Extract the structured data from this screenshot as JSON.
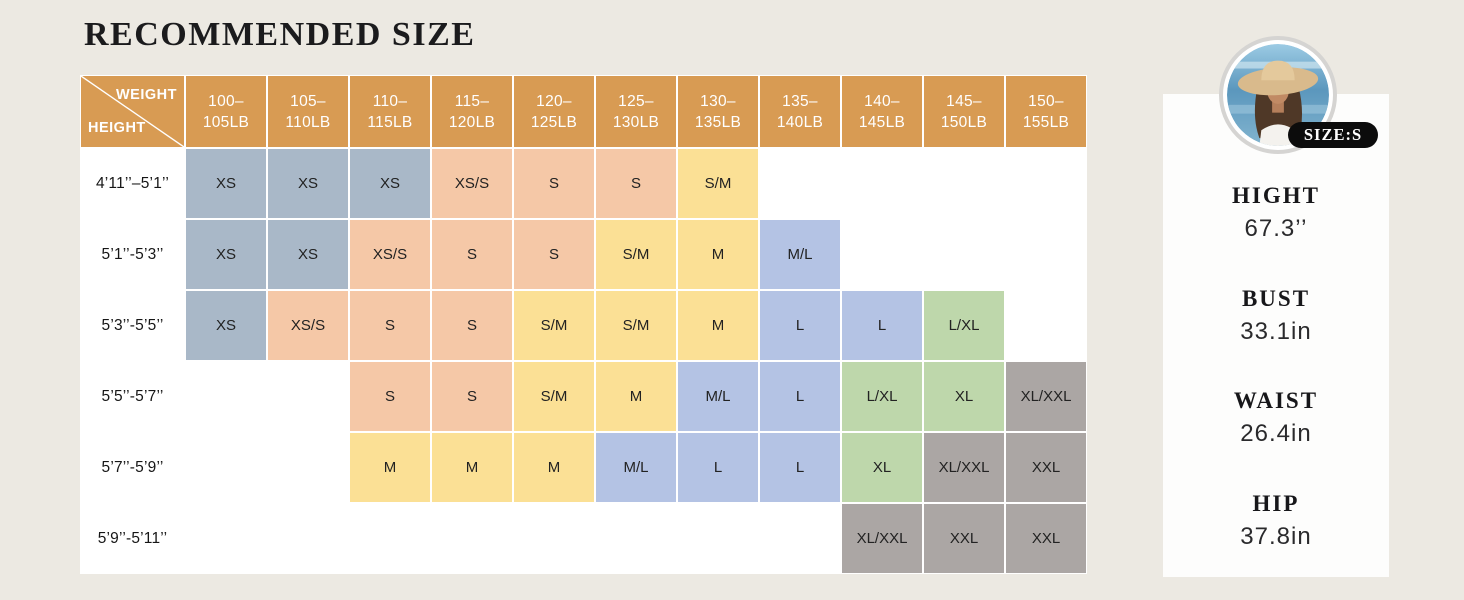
{
  "page": {
    "title": "RECOMMENDED SIZE",
    "background": "#ECE9E2"
  },
  "chart_data": {
    "type": "table",
    "title": "RECOMMENDED SIZE",
    "corner": {
      "weight_label": "WEIGHT",
      "height_label": "HEIGHT"
    },
    "columns": [
      "100–105LB",
      "105–110LB",
      "110–115LB",
      "115–120LB",
      "120–125LB",
      "125–130LB",
      "130–135LB",
      "135–140LB",
      "140–145LB",
      "145–150LB",
      "150–155LB"
    ],
    "palette": {
      "header": "#D89B53",
      "xs": "#A9B8C8",
      "s": "#F5C8A7",
      "m": "#FBE095",
      "l": "#B4C3E4",
      "xl": "#BED7AB",
      "xxl": "#ABA6A4"
    },
    "rows": [
      {
        "height": "4’11’’–5’1’’",
        "cells": [
          {
            "t": "XS",
            "c": "xs"
          },
          {
            "t": "XS",
            "c": "xs"
          },
          {
            "t": "XS",
            "c": "xs"
          },
          {
            "t": "XS/S",
            "c": "s"
          },
          {
            "t": "S",
            "c": "s"
          },
          {
            "t": "S",
            "c": "s"
          },
          {
            "t": "S/M",
            "c": "m"
          },
          null,
          null,
          null,
          null
        ]
      },
      {
        "height": "5’1’’-5’3’’",
        "cells": [
          {
            "t": "XS",
            "c": "xs"
          },
          {
            "t": "XS",
            "c": "xs"
          },
          {
            "t": "XS/S",
            "c": "s"
          },
          {
            "t": "S",
            "c": "s"
          },
          {
            "t": "S",
            "c": "s"
          },
          {
            "t": "S/M",
            "c": "m"
          },
          {
            "t": "M",
            "c": "m"
          },
          {
            "t": "M/L",
            "c": "l"
          },
          null,
          null,
          null
        ]
      },
      {
        "height": "5’3’’-5’5’’",
        "cells": [
          {
            "t": "XS",
            "c": "xs"
          },
          {
            "t": "XS/S",
            "c": "s"
          },
          {
            "t": "S",
            "c": "s"
          },
          {
            "t": "S",
            "c": "s"
          },
          {
            "t": "S/M",
            "c": "m"
          },
          {
            "t": "S/M",
            "c": "m"
          },
          {
            "t": "M",
            "c": "m"
          },
          {
            "t": "L",
            "c": "l"
          },
          {
            "t": "L",
            "c": "l"
          },
          {
            "t": "L/XL",
            "c": "xl"
          },
          null
        ]
      },
      {
        "height": "5’5’’-5’7’’",
        "cells": [
          null,
          null,
          {
            "t": "S",
            "c": "s"
          },
          {
            "t": "S",
            "c": "s"
          },
          {
            "t": "S/M",
            "c": "m"
          },
          {
            "t": "M",
            "c": "m"
          },
          {
            "t": "M/L",
            "c": "l"
          },
          {
            "t": "L",
            "c": "l"
          },
          {
            "t": "L/XL",
            "c": "xl"
          },
          {
            "t": "XL",
            "c": "xl"
          },
          {
            "t": "XL/XXL",
            "c": "xxl"
          }
        ]
      },
      {
        "height": "5’7’’-5’9’’",
        "cells": [
          null,
          null,
          {
            "t": "M",
            "c": "m"
          },
          {
            "t": "M",
            "c": "m"
          },
          {
            "t": "M",
            "c": "m"
          },
          {
            "t": "M/L",
            "c": "l"
          },
          {
            "t": "L",
            "c": "l"
          },
          {
            "t": "L",
            "c": "l"
          },
          {
            "t": "XL",
            "c": "xl"
          },
          {
            "t": "XL/XXL",
            "c": "xxl"
          },
          {
            "t": "XXL",
            "c": "xxl"
          }
        ]
      },
      {
        "height": "5’9’’-5’11’’",
        "cells": [
          null,
          null,
          null,
          null,
          null,
          null,
          null,
          null,
          {
            "t": "XL/XXL",
            "c": "xxl"
          },
          {
            "t": "XXL",
            "c": "xxl"
          },
          {
            "t": "XXL",
            "c": "xxl"
          }
        ]
      }
    ]
  },
  "panel": {
    "badge": "SIZE:S",
    "photo": "model-in-straw-hat-by-ocean",
    "stats": [
      {
        "label": "HIGHT",
        "value": "67.3’’"
      },
      {
        "label": "BUST",
        "value": "33.1in"
      },
      {
        "label": "WAIST",
        "value": "26.4in"
      },
      {
        "label": "HIP",
        "value": "37.8in"
      }
    ]
  }
}
